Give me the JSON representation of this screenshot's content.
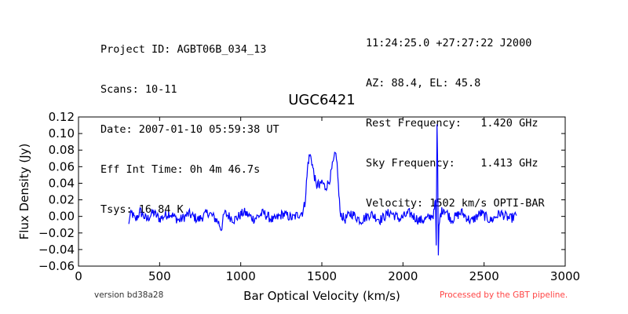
{
  "header_left": [
    "Project ID: AGBT06B_034_13",
    "Scans: 10-11",
    "Date: 2007-01-10 05:59:38 UT",
    "Eff Int Time: 0h 4m 46.7s",
    "Tsys: 16.84 K"
  ],
  "header_right": [
    "11:24:25.0 +27:27:22 J2000",
    "AZ: 88.4, EL: 45.8",
    "Rest Frequency:   1.420 GHz",
    "Sky Frequency:    1.413 GHz",
    "Velocity: 1502 km/s OPTI-BAR"
  ],
  "footer": {
    "version": "version bd38a28",
    "processed": "Processed by the GBT pipeline."
  },
  "colors": {
    "series": "#0000ff",
    "processed_text": "#ff4444"
  },
  "chart_data": {
    "type": "line",
    "title": "UGC6421",
    "xlabel": "Bar Optical Velocity (km/s)",
    "ylabel": "Flux Density (Jy)",
    "xlim": [
      0,
      3000
    ],
    "ylim": [
      -0.06,
      0.12
    ],
    "xticks": [
      0,
      500,
      1000,
      1500,
      2000,
      2500,
      3000
    ],
    "xtick_labels": [
      "0",
      "500",
      "1000",
      "1500",
      "2000",
      "2500",
      "3000"
    ],
    "yticks": [
      -0.06,
      -0.04,
      -0.02,
      0.0,
      0.02,
      0.04,
      0.06,
      0.08,
      0.1,
      0.12
    ],
    "ytick_labels": [
      "−0.06",
      "−0.04",
      "−0.02",
      "0.00",
      "0.02",
      "0.04",
      "0.06",
      "0.08",
      "0.10",
      "0.12"
    ],
    "grid": false,
    "legend": "none",
    "series": [
      {
        "x": [
          310,
          315,
          330,
          350,
          380,
          420,
          460,
          500,
          560,
          620,
          680,
          740,
          800,
          860,
          880,
          900,
          960,
          1020,
          1080,
          1140,
          1200,
          1260,
          1320,
          1360,
          1380,
          1395,
          1405,
          1415,
          1425,
          1435,
          1445,
          1455,
          1465,
          1475,
          1485,
          1500,
          1520,
          1540,
          1555,
          1565,
          1575,
          1583,
          1590,
          1598,
          1605,
          1612,
          1620,
          1640,
          1680,
          1740,
          1800,
          1860,
          1920,
          1980,
          2040,
          2100,
          2150,
          2190,
          2200,
          2205,
          2210,
          2214,
          2218,
          2222,
          2226,
          2232,
          2250,
          2300,
          2360,
          2420,
          2480,
          2540,
          2600,
          2660,
          2700
        ],
        "y": [
          -0.011,
          0.0,
          0.004,
          -0.005,
          0.006,
          -0.004,
          0.005,
          -0.003,
          0.004,
          -0.005,
          0.003,
          -0.004,
          0.005,
          -0.006,
          -0.015,
          0.004,
          -0.004,
          0.005,
          -0.003,
          0.004,
          -0.005,
          0.003,
          -0.002,
          0.003,
          0.005,
          0.015,
          0.04,
          0.065,
          0.074,
          0.07,
          0.058,
          0.048,
          0.036,
          0.04,
          0.035,
          0.042,
          0.035,
          0.04,
          0.05,
          0.06,
          0.068,
          0.075,
          0.073,
          0.05,
          0.025,
          0.008,
          0.002,
          -0.004,
          0.004,
          -0.005,
          0.003,
          -0.004,
          0.005,
          -0.003,
          0.004,
          -0.005,
          -0.003,
          0.003,
          0.02,
          -0.035,
          0.111,
          0.06,
          -0.047,
          -0.015,
          -0.006,
          0.003,
          0.01,
          -0.004,
          0.005,
          -0.006,
          0.004,
          -0.005,
          0.004,
          -0.003,
          0.001
        ]
      }
    ]
  }
}
